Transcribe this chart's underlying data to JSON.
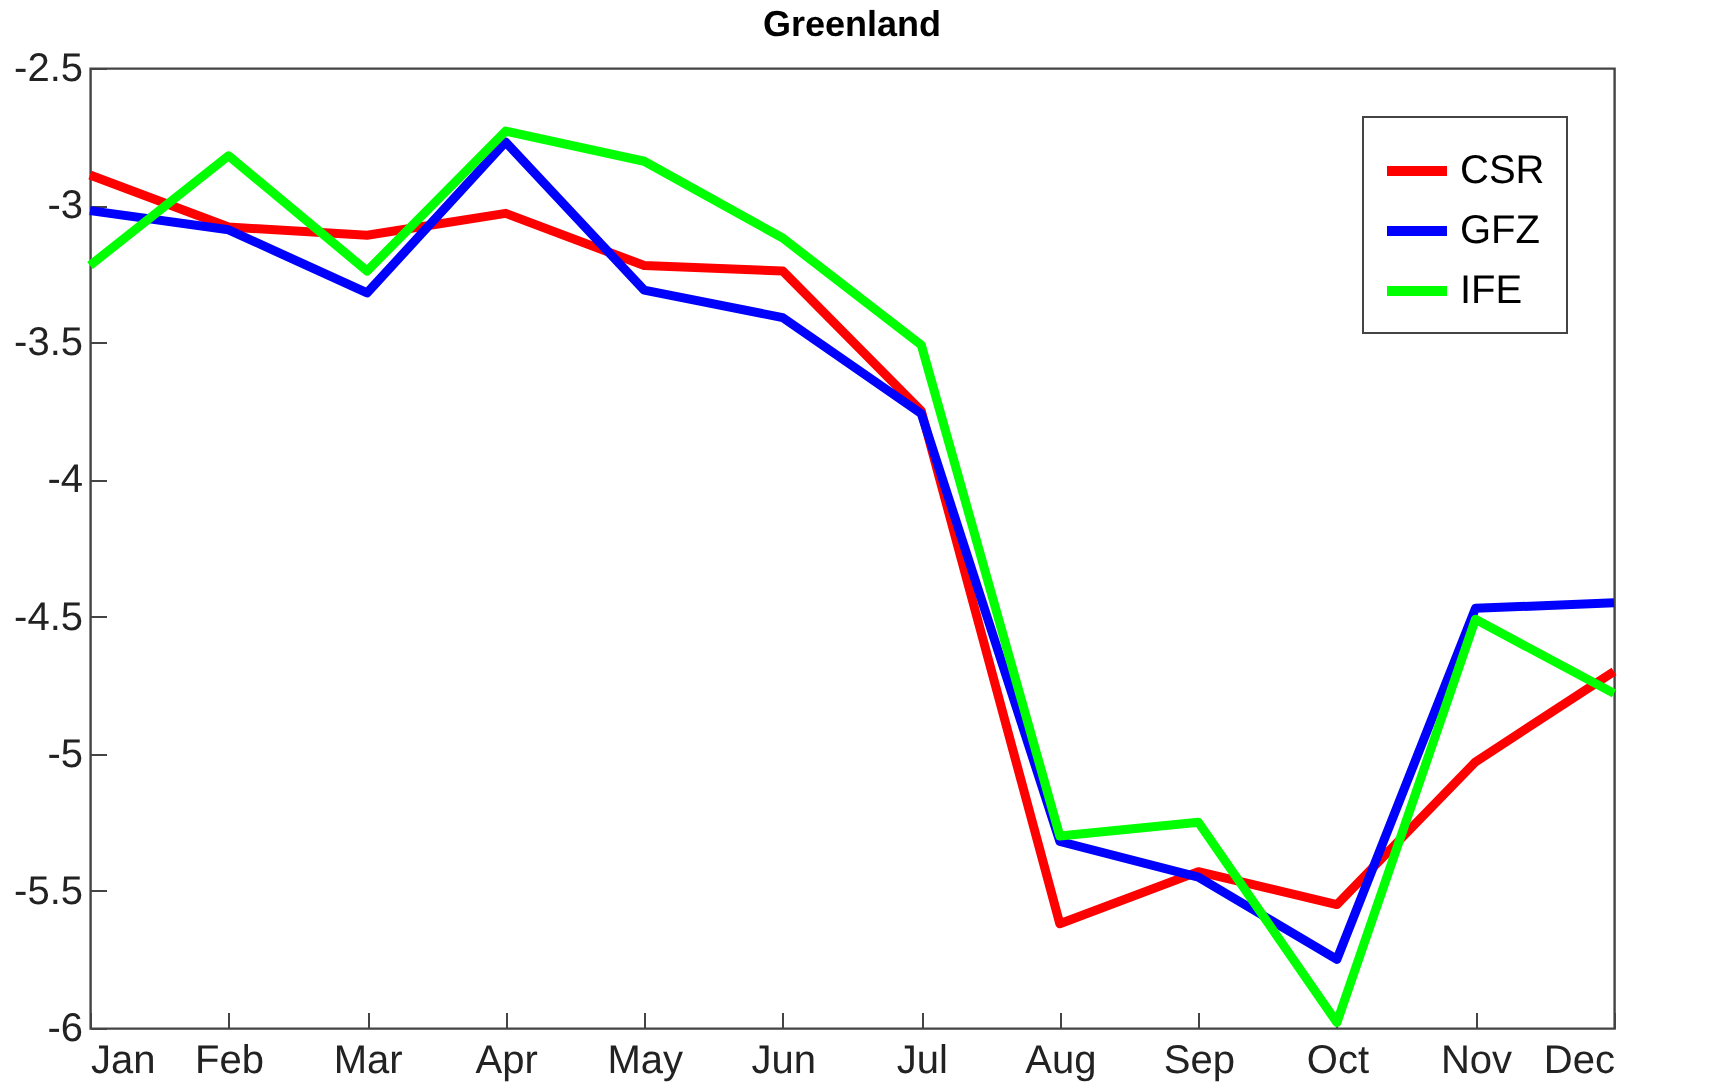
{
  "chart_data": {
    "type": "line",
    "title": "Greenland",
    "categories": [
      "Jan",
      "Feb",
      "Mar",
      "Apr",
      "May",
      "Jun",
      "Jul",
      "Aug",
      "Sep",
      "Oct",
      "Nov",
      "Dec"
    ],
    "series": [
      {
        "name": "CSR",
        "color": "#ff0000",
        "values": [
          -2.89,
          -3.08,
          -3.11,
          -3.03,
          -3.22,
          -3.24,
          -3.75,
          -5.62,
          -5.43,
          -5.55,
          -5.03,
          -4.7
        ]
      },
      {
        "name": "GFZ",
        "color": "#0000ff",
        "values": [
          -3.02,
          -3.09,
          -3.32,
          -2.77,
          -3.31,
          -3.41,
          -3.76,
          -5.32,
          -5.45,
          -5.75,
          -4.47,
          -4.45
        ]
      },
      {
        "name": "IFE",
        "color": "#00ff00",
        "values": [
          -3.22,
          -2.82,
          -3.24,
          -2.73,
          -2.84,
          -3.12,
          -3.51,
          -5.3,
          -5.25,
          -5.98,
          -4.51,
          -4.78
        ]
      }
    ],
    "ylim": [
      -6,
      -2.5
    ],
    "yticks": [
      {
        "value": -6,
        "label": "-6"
      },
      {
        "value": -5.5,
        "label": "-5.5"
      },
      {
        "value": -5,
        "label": "-5"
      },
      {
        "value": -4.5,
        "label": "-4.5"
      },
      {
        "value": -4,
        "label": "-4"
      },
      {
        "value": -3.5,
        "label": "-3.5"
      },
      {
        "value": -3,
        "label": "-3"
      },
      {
        "value": -2.5,
        "label": "-2.5"
      }
    ],
    "grid": false,
    "legend": "top right",
    "marker": "none",
    "line_style": "solid"
  }
}
